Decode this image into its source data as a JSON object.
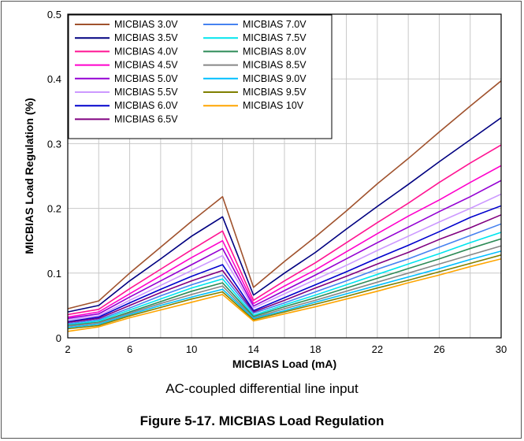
{
  "caption": "AC-coupled differential line input",
  "figure_title": "Figure 5-17. MICBIAS Load Regulation",
  "chart_data": {
    "type": "line",
    "xlabel": "MICBIAS Load (mA)",
    "ylabel": "MICBIAS Load Regulation (%)",
    "xlim": [
      2,
      30
    ],
    "ylim": [
      0,
      0.5
    ],
    "x_ticks": [
      "2",
      "6",
      "10",
      "14",
      "18",
      "22",
      "26",
      "30"
    ],
    "y_ticks": [
      "0",
      "0.1",
      "0.2",
      "0.3",
      "0.4",
      "0.5"
    ],
    "grid": true,
    "legend_position": "top-left",
    "x": [
      2,
      4,
      6,
      8,
      10,
      12,
      14,
      16,
      18,
      20,
      22,
      24,
      26,
      28,
      30
    ],
    "series": [
      {
        "name": "MICBIAS 3.0V",
        "color": "#a0522d",
        "values": [
          0.045,
          0.057,
          0.1,
          0.14,
          0.18,
          0.218,
          0.078,
          0.118,
          0.156,
          0.196,
          0.238,
          0.277,
          0.318,
          0.358,
          0.397
        ]
      },
      {
        "name": "MICBIAS 3.5V",
        "color": "#000080",
        "values": [
          0.04,
          0.05,
          0.088,
          0.122,
          0.157,
          0.187,
          0.066,
          0.1,
          0.132,
          0.168,
          0.203,
          0.237,
          0.272,
          0.306,
          0.34
        ]
      },
      {
        "name": "MICBIAS 4.0V",
        "color": "#ff1493",
        "values": [
          0.036,
          0.044,
          0.076,
          0.106,
          0.136,
          0.165,
          0.058,
          0.088,
          0.116,
          0.147,
          0.178,
          0.208,
          0.24,
          0.27,
          0.298
        ]
      },
      {
        "name": "MICBIAS 4.5V",
        "color": "#ff00cc",
        "values": [
          0.032,
          0.04,
          0.068,
          0.096,
          0.124,
          0.15,
          0.053,
          0.08,
          0.105,
          0.133,
          0.161,
          0.188,
          0.213,
          0.24,
          0.266
        ]
      },
      {
        "name": "MICBIAS 5.0V",
        "color": "#9400d3",
        "values": [
          0.03,
          0.037,
          0.063,
          0.088,
          0.113,
          0.138,
          0.049,
          0.073,
          0.097,
          0.122,
          0.147,
          0.171,
          0.195,
          0.218,
          0.243
        ]
      },
      {
        "name": "MICBIAS 5.5V",
        "color": "#cc99ff",
        "values": [
          0.028,
          0.034,
          0.058,
          0.081,
          0.104,
          0.127,
          0.046,
          0.068,
          0.09,
          0.112,
          0.135,
          0.157,
          0.179,
          0.2,
          0.222
        ]
      },
      {
        "name": "MICBIAS 6.0V",
        "color": "#0000cd",
        "values": [
          0.025,
          0.032,
          0.054,
          0.075,
          0.095,
          0.113,
          0.042,
          0.062,
          0.082,
          0.102,
          0.123,
          0.143,
          0.164,
          0.186,
          0.204
        ]
      },
      {
        "name": "MICBIAS 6.5V",
        "color": "#800080",
        "values": [
          0.024,
          0.03,
          0.05,
          0.07,
          0.088,
          0.104,
          0.04,
          0.058,
          0.077,
          0.095,
          0.114,
          0.132,
          0.152,
          0.17,
          0.19
        ]
      },
      {
        "name": "MICBIAS 7.0V",
        "color": "#4682f0",
        "values": [
          0.022,
          0.028,
          0.046,
          0.065,
          0.082,
          0.097,
          0.038,
          0.054,
          0.071,
          0.088,
          0.106,
          0.122,
          0.14,
          0.158,
          0.176
        ]
      },
      {
        "name": "MICBIAS 7.5V",
        "color": "#00e5ee",
        "values": [
          0.02,
          0.026,
          0.043,
          0.06,
          0.077,
          0.091,
          0.035,
          0.051,
          0.066,
          0.082,
          0.098,
          0.114,
          0.13,
          0.147,
          0.163
        ]
      },
      {
        "name": "MICBIAS 8.0V",
        "color": "#2e8b57",
        "values": [
          0.019,
          0.024,
          0.04,
          0.056,
          0.072,
          0.085,
          0.033,
          0.048,
          0.062,
          0.077,
          0.092,
          0.107,
          0.122,
          0.138,
          0.153
        ]
      },
      {
        "name": "MICBIAS 8.5V",
        "color": "#888888",
        "values": [
          0.018,
          0.023,
          0.038,
          0.053,
          0.067,
          0.08,
          0.031,
          0.045,
          0.058,
          0.072,
          0.086,
          0.1,
          0.114,
          0.128,
          0.142
        ]
      },
      {
        "name": "MICBIAS 9.0V",
        "color": "#00bfff",
        "values": [
          0.016,
          0.021,
          0.036,
          0.05,
          0.063,
          0.075,
          0.03,
          0.042,
          0.055,
          0.068,
          0.081,
          0.094,
          0.107,
          0.121,
          0.134
        ]
      },
      {
        "name": "MICBIAS 9.5V",
        "color": "#808000",
        "values": [
          0.014,
          0.019,
          0.034,
          0.047,
          0.06,
          0.071,
          0.028,
          0.04,
          0.052,
          0.064,
          0.077,
          0.089,
          0.102,
          0.115,
          0.128
        ]
      },
      {
        "name": "MICBIAS 10V",
        "color": "#ffa500",
        "values": [
          0.01,
          0.017,
          0.031,
          0.043,
          0.055,
          0.067,
          0.026,
          0.037,
          0.048,
          0.06,
          0.072,
          0.085,
          0.097,
          0.11,
          0.122
        ]
      }
    ]
  }
}
